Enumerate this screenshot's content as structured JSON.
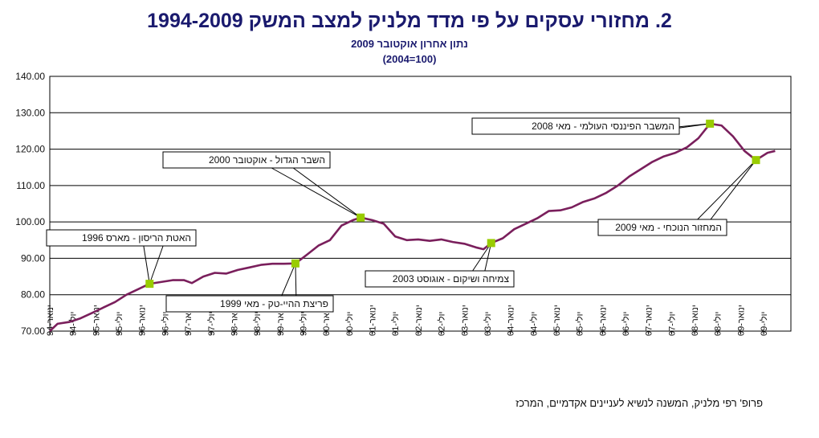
{
  "chart_data": {
    "type": "line",
    "title": "2.   מחזורי עסקים על פי מדד מלניק למצב המשק 1994-2009",
    "subtitle": "נתון אחרון אוקטובר 2009",
    "subtitle2": "(2004=100)",
    "ylim": [
      70,
      140
    ],
    "yticks": [
      "70.00",
      "80.00",
      "90.00",
      "100.00",
      "110.00",
      "120.00",
      "130.00",
      "140.00"
    ],
    "grid": "horizontal",
    "xticks": [
      "ינואר-94",
      "יולי-94",
      "ינואר-95",
      "יולי-95",
      "ינואר-96",
      "יולי-96",
      "ינואר-97",
      "יולי-97",
      "ינואר-98",
      "יולי-98",
      "ינואר-99",
      "יולי-99",
      "ינואר-00",
      "יולי-00",
      "ינואר-01",
      "יולי-01",
      "ינואר-02",
      "יולי-02",
      "ינואר-03",
      "יולי-03",
      "ינואר-04",
      "יולי-04",
      "ינואר-05",
      "יולי-05",
      "ינואר-06",
      "יולי-06",
      "ינואר-07",
      "יולי-07",
      "ינואר-08",
      "יולי-08",
      "ינואר-09",
      "יולי-09"
    ],
    "series": [
      {
        "color": "#7a1f5c",
        "points": [
          [
            "1994-01",
            70.0
          ],
          [
            "1994-03",
            72.0
          ],
          [
            "1994-06",
            72.5
          ],
          [
            "1994-09",
            73.5
          ],
          [
            "1994-12",
            75.0
          ],
          [
            "1995-03",
            76.5
          ],
          [
            "1995-06",
            78.0
          ],
          [
            "1995-09",
            80.0
          ],
          [
            "1995-12",
            81.5
          ],
          [
            "1996-03",
            83.0
          ],
          [
            "1996-06",
            83.5
          ],
          [
            "1996-09",
            84.0
          ],
          [
            "1996-12",
            84.0
          ],
          [
            "1997-02",
            83.2
          ],
          [
            "1997-05",
            85.0
          ],
          [
            "1997-08",
            86.0
          ],
          [
            "1997-11",
            85.8
          ],
          [
            "1998-02",
            86.8
          ],
          [
            "1998-05",
            87.5
          ],
          [
            "1998-08",
            88.2
          ],
          [
            "1998-11",
            88.5
          ],
          [
            "1999-02",
            88.5
          ],
          [
            "1999-05",
            88.6
          ],
          [
            "1999-08",
            91.0
          ],
          [
            "1999-11",
            93.5
          ],
          [
            "2000-02",
            95.0
          ],
          [
            "2000-05",
            99.0
          ],
          [
            "2000-08",
            100.5
          ],
          [
            "2000-10",
            101.2
          ],
          [
            "2001-01",
            100.5
          ],
          [
            "2001-04",
            99.5
          ],
          [
            "2001-07",
            96.0
          ],
          [
            "2001-10",
            95.0
          ],
          [
            "2002-01",
            95.2
          ],
          [
            "2002-04",
            94.8
          ],
          [
            "2002-07",
            95.2
          ],
          [
            "2002-10",
            94.5
          ],
          [
            "2003-01",
            94.0
          ],
          [
            "2003-04",
            93.0
          ],
          [
            "2003-06",
            92.5
          ],
          [
            "2003-08",
            94.2
          ],
          [
            "2003-11",
            95.5
          ],
          [
            "2004-02",
            98.0
          ],
          [
            "2004-05",
            99.5
          ],
          [
            "2004-08",
            101.0
          ],
          [
            "2004-11",
            103.0
          ],
          [
            "2005-02",
            103.2
          ],
          [
            "2005-05",
            104.0
          ],
          [
            "2005-08",
            105.5
          ],
          [
            "2005-11",
            106.5
          ],
          [
            "2006-02",
            108.0
          ],
          [
            "2006-05",
            110.0
          ],
          [
            "2006-08",
            112.5
          ],
          [
            "2006-11",
            114.5
          ],
          [
            "2007-02",
            116.5
          ],
          [
            "2007-05",
            118.0
          ],
          [
            "2007-08",
            119.0
          ],
          [
            "2007-11",
            120.5
          ],
          [
            "2008-02",
            123.0
          ],
          [
            "2008-05",
            127.0
          ],
          [
            "2008-08",
            126.5
          ],
          [
            "2008-11",
            123.5
          ],
          [
            "2009-02",
            119.5
          ],
          [
            "2009-05",
            117.0
          ],
          [
            "2009-08",
            119.0
          ],
          [
            "2009-10",
            119.5
          ]
        ]
      }
    ],
    "annotations": [
      {
        "label": "האטת הריסון - מארס 1996",
        "date": "1996-03",
        "value": 83.0
      },
      {
        "label": "פריצת ההיי-טק - מאי 1999",
        "date": "1999-05",
        "value": 88.6
      },
      {
        "label": "השבר הגדול - אוקטובר 2000",
        "date": "2000-10",
        "value": 101.2
      },
      {
        "label": "צמיחה ושיקום - אוגוסט 2003",
        "date": "2003-08",
        "value": 94.2
      },
      {
        "label": "המשבר הפיננסי העולמי - מאי 2008",
        "date": "2008-05",
        "value": 127.0
      },
      {
        "label": "המחזור הנוכחי - מאי 2009",
        "date": "2009-05",
        "value": 117.0
      }
    ],
    "marker_color": "#99cc00"
  },
  "credit": "פרופ' רפי מלניק, המשנה לנשיא לעניינים אקדמיים, המרכז"
}
